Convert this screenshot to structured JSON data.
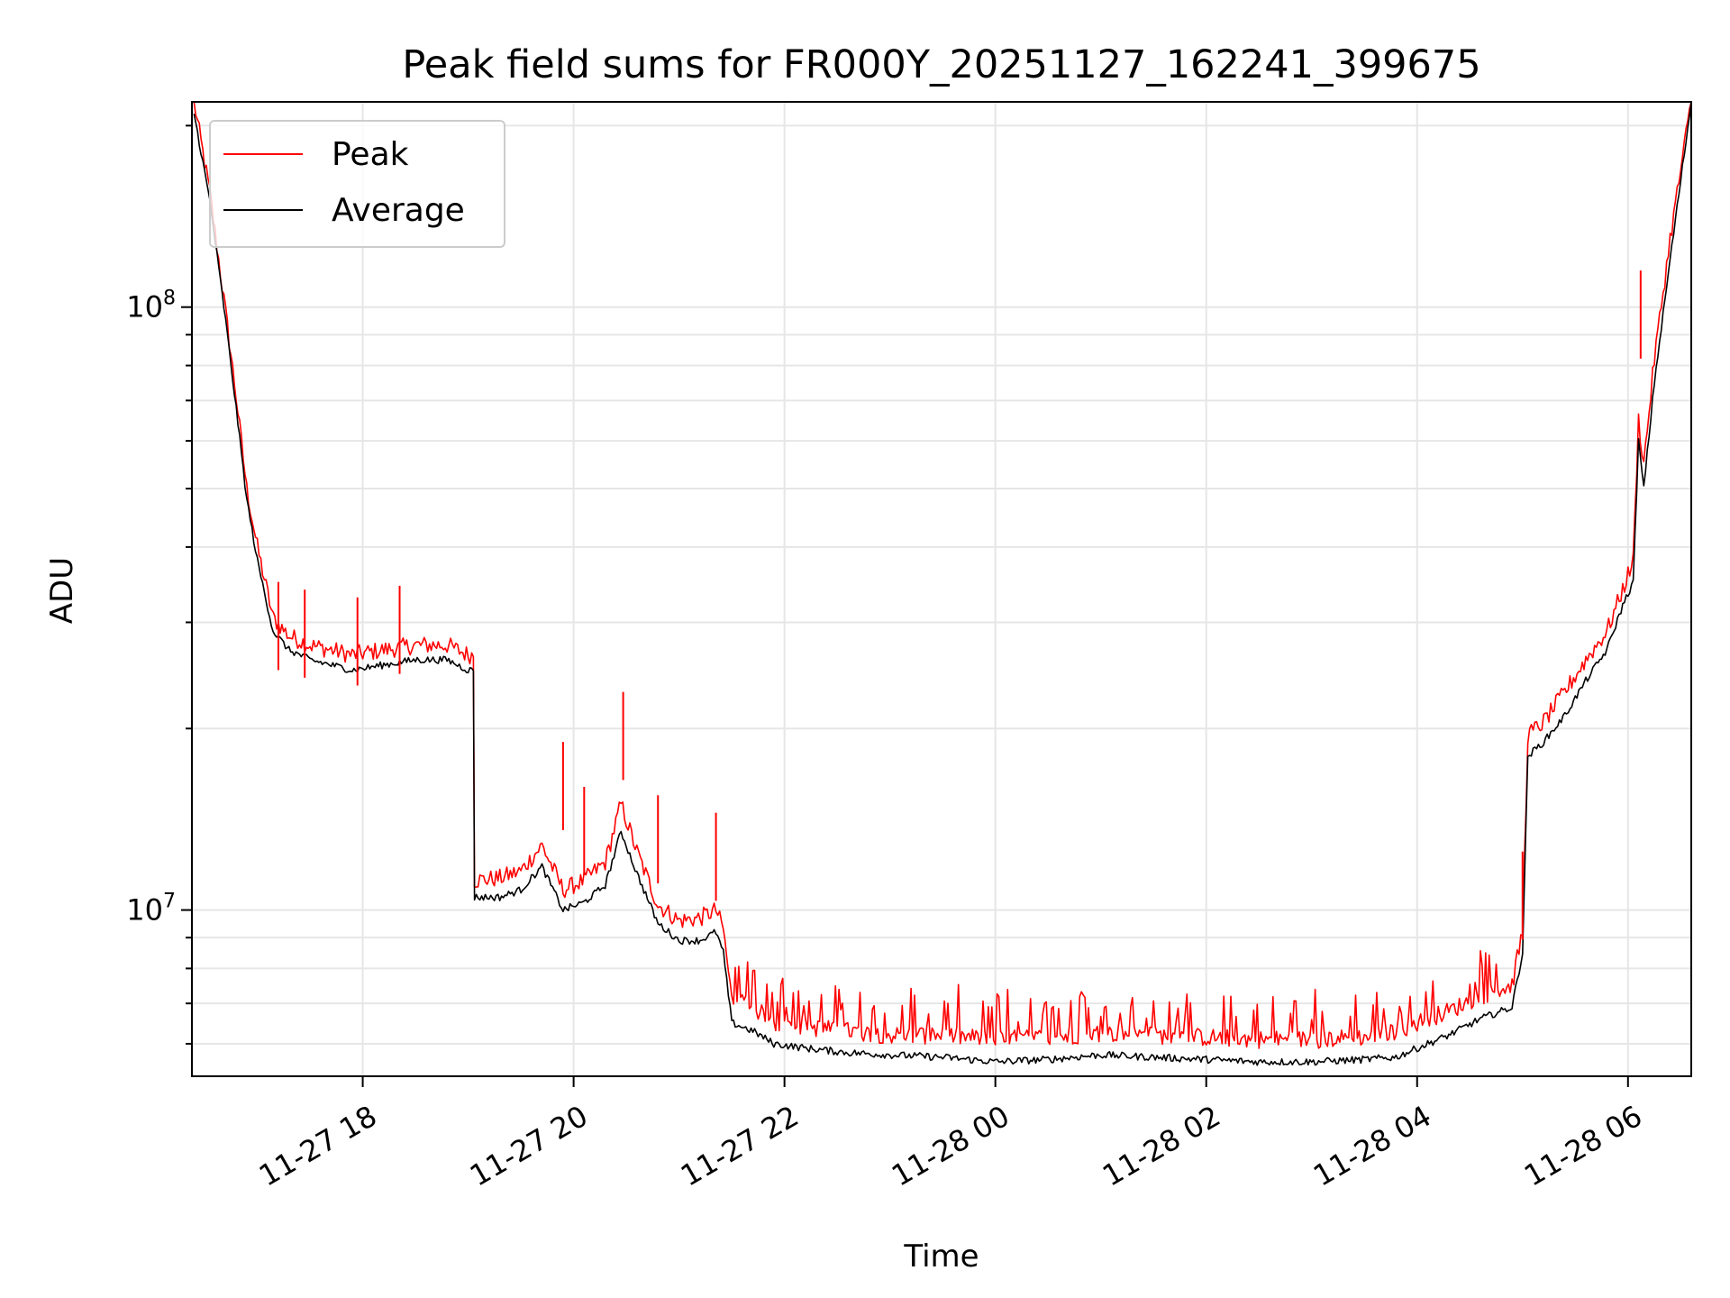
{
  "chart_data": {
    "type": "line",
    "title": "Peak field sums for FR000Y_20251127_162241_399675",
    "xlabel": "Time",
    "ylabel": "ADU",
    "y_scale": "log",
    "ylim": [
      5300000,
      219000000
    ],
    "xlim_hours_from_11_27_00": [
      16.38,
      30.6
    ],
    "x_ticks": [
      {
        "label": "11-27 18",
        "hour": 18
      },
      {
        "label": "11-27 20",
        "hour": 20
      },
      {
        "label": "11-27 22",
        "hour": 22
      },
      {
        "label": "11-28 00",
        "hour": 24
      },
      {
        "label": "11-28 02",
        "hour": 26
      },
      {
        "label": "11-28 04",
        "hour": 28
      },
      {
        "label": "11-28 06",
        "hour": 30
      }
    ],
    "y_ticks": [
      {
        "base": "10",
        "exp": "7",
        "value": 10000000
      },
      {
        "base": "10",
        "exp": "8",
        "value": 100000000
      }
    ],
    "grid": true,
    "legend": {
      "position": "top-left",
      "entries": [
        {
          "label": "Peak",
          "color": "#ff0000"
        },
        {
          "label": "Average",
          "color": "#000000"
        }
      ]
    },
    "series": [
      {
        "name": "Average",
        "color": "#000000",
        "x_hours": [
          16.4,
          16.55,
          16.7,
          16.8,
          16.9,
          17.0,
          17.15,
          17.3,
          17.5,
          17.7,
          17.9,
          18.2,
          18.5,
          18.8,
          19.0,
          19.05,
          19.06,
          19.3,
          19.5,
          19.7,
          19.9,
          20.1,
          20.3,
          20.45,
          20.6,
          20.8,
          21.0,
          21.2,
          21.35,
          21.42,
          21.5,
          21.7,
          21.9,
          22.2,
          22.6,
          23.0,
          23.5,
          24.0,
          24.5,
          25.0,
          25.5,
          26.0,
          26.5,
          27.0,
          27.5,
          27.8,
          28.0,
          28.3,
          28.6,
          28.9,
          29.0,
          29.05,
          29.2,
          29.4,
          29.6,
          29.8,
          29.95,
          30.05,
          30.1,
          30.15,
          30.25,
          30.4,
          30.6
        ],
        "values": [
          210000000,
          150000000,
          95000000,
          68000000,
          48000000,
          38000000,
          29000000,
          27000000,
          26000000,
          25500000,
          25000000,
          25500000,
          26000000,
          26000000,
          25000000,
          25000000,
          10500000,
          10500000,
          10800000,
          11800000,
          10000000,
          10300000,
          11000000,
          13500000,
          11500000,
          9500000,
          8900000,
          8900000,
          9200000,
          8500000,
          6500000,
          6300000,
          6000000,
          5900000,
          5800000,
          5750000,
          5700000,
          5600000,
          5650000,
          5750000,
          5700000,
          5650000,
          5600000,
          5600000,
          5650000,
          5700000,
          5900000,
          6200000,
          6600000,
          6900000,
          8500000,
          18000000,
          19000000,
          21000000,
          24000000,
          27000000,
          32000000,
          35000000,
          60000000,
          50000000,
          75000000,
          120000000,
          219000000
        ]
      },
      {
        "name": "Peak",
        "color": "#ff0000",
        "x_hours": [
          16.4,
          16.55,
          16.7,
          16.8,
          16.9,
          17.0,
          17.15,
          17.3,
          17.5,
          17.7,
          17.9,
          18.2,
          18.5,
          18.8,
          19.0,
          19.05,
          19.06,
          19.3,
          19.5,
          19.7,
          19.9,
          20.1,
          20.3,
          20.45,
          20.6,
          20.8,
          21.0,
          21.2,
          21.35,
          21.42,
          21.5,
          21.7,
          21.9,
          22.2,
          22.6,
          23.0,
          23.5,
          24.0,
          24.5,
          25.0,
          25.5,
          26.0,
          26.5,
          27.0,
          27.5,
          27.8,
          28.0,
          28.3,
          28.6,
          28.9,
          29.0,
          29.05,
          29.2,
          29.4,
          29.6,
          29.8,
          29.95,
          30.05,
          30.1,
          30.15,
          30.25,
          30.4,
          30.6
        ],
        "values": [
          219000000,
          155000000,
          98000000,
          71000000,
          50000000,
          40000000,
          30500000,
          28500000,
          27500000,
          27000000,
          26500000,
          27000000,
          27500000,
          27500000,
          26500000,
          26500000,
          11200000,
          11300000,
          11600000,
          12800000,
          10800000,
          11200000,
          12000000,
          15000000,
          12500000,
          10200000,
          9600000,
          9700000,
          10000000,
          9300000,
          7100000,
          6900000,
          6500000,
          6400000,
          6300000,
          6200000,
          6200000,
          6100000,
          6150000,
          6250000,
          6200000,
          6150000,
          6100000,
          6100000,
          6150000,
          6300000,
          6500000,
          6800000,
          7200000,
          7500000,
          9200000,
          19500000,
          20500000,
          23000000,
          26000000,
          29000000,
          34000000,
          38000000,
          65000000,
          55000000,
          82000000,
          130000000,
          219000000
        ]
      }
    ],
    "spikes": [
      {
        "series": "Peak",
        "x_hour": 17.2,
        "value": 35000000
      },
      {
        "series": "Peak",
        "x_hour": 17.45,
        "value": 34000000
      },
      {
        "series": "Peak",
        "x_hour": 17.95,
        "value": 33000000
      },
      {
        "series": "Peak",
        "x_hour": 18.35,
        "value": 34500000
      },
      {
        "series": "Peak",
        "x_hour": 19.9,
        "value": 19000000
      },
      {
        "series": "Peak",
        "x_hour": 20.1,
        "value": 16000000
      },
      {
        "series": "Peak",
        "x_hour": 20.47,
        "value": 23000000
      },
      {
        "series": "Peak",
        "x_hour": 20.8,
        "value": 15500000
      },
      {
        "series": "Peak",
        "x_hour": 21.35,
        "value": 14500000
      },
      {
        "series": "Peak",
        "x_hour": 29.0,
        "value": 12500000
      },
      {
        "series": "Peak",
        "x_hour": 30.12,
        "value": 115000000
      }
    ]
  }
}
